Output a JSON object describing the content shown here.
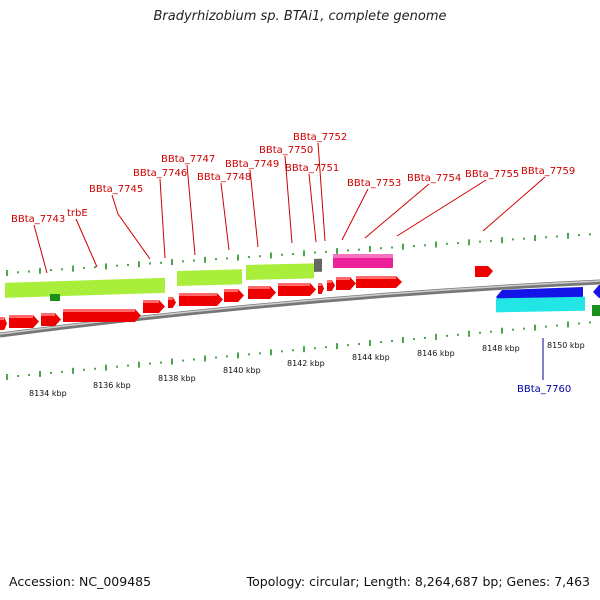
{
  "title": "Bradyrhizobium sp. BTAi1, complete genome",
  "accession": "Accession: NC_009485",
  "summary": "Topology: circular; Length: 8,264,687 bp; Genes: 7,463",
  "ruler_labels": [
    "8134 kbp",
    "8136 kbp",
    "8138 kbp",
    "8140 kbp",
    "8142 kbp",
    "8144 kbp",
    "8146 kbp",
    "8148 kbp",
    "8150 kbp"
  ],
  "gene_labels_top": [
    "BBta_7743",
    "trbE",
    "BBta_7745",
    "BBta_7746",
    "BBta_7747",
    "BBta_7748",
    "BBta_7749",
    "BBta_7750",
    "BBta_7751",
    "BBta_7752",
    "BBta_7753",
    "BBta_7754",
    "BBta_7755",
    "BBta_7759"
  ],
  "gene_labels_bottom": [
    "BBta_7760"
  ],
  "colors": {
    "cds_forward": "#ff0000",
    "gene_forward": "#a8ee3a",
    "pink_feature": "#ee1f9a",
    "cds_reverse": "#1414e6",
    "gene_reverse": "#22e6e6",
    "tick": "#118811",
    "backbone": "#888888",
    "label_top": "#cc0000",
    "label_bottom": "#000099"
  }
}
